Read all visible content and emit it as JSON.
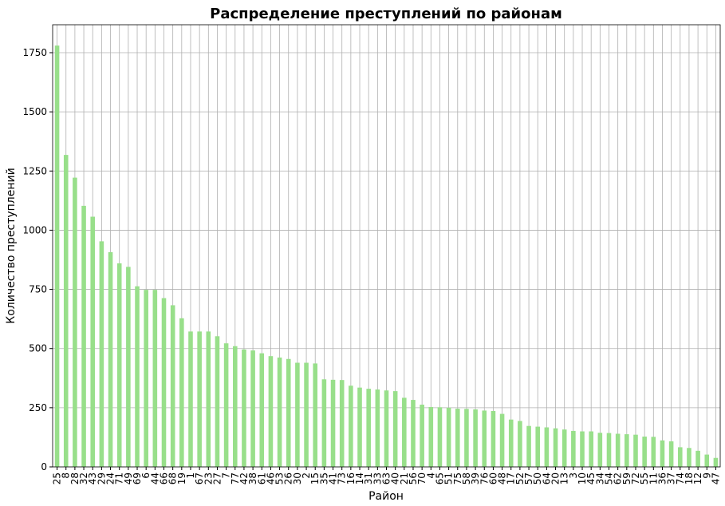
{
  "chart_data": {
    "type": "bar",
    "title": "Распределение преступлений по районам",
    "xlabel": "Район",
    "ylabel": "Количество преступлений",
    "categories": [
      "25",
      "8",
      "28",
      "32",
      "43",
      "29",
      "24",
      "71",
      "49",
      "69",
      "6",
      "44",
      "66",
      "68",
      "19",
      "1",
      "67",
      "23",
      "27",
      "7",
      "77",
      "42",
      "38",
      "61",
      "46",
      "53",
      "26",
      "30",
      "2",
      "15",
      "35",
      "41",
      "73",
      "16",
      "14",
      "31",
      "33",
      "63",
      "40",
      "21",
      "56",
      "70",
      "4",
      "65",
      "51",
      "75",
      "58",
      "39",
      "76",
      "60",
      "48",
      "17",
      "52",
      "57",
      "50",
      "64",
      "20",
      "13",
      "3",
      "10",
      "45",
      "34",
      "54",
      "62",
      "59",
      "72",
      "55",
      "11",
      "36",
      "37",
      "74",
      "18",
      "12",
      "9",
      "47"
    ],
    "values": [
      1780,
      1318,
      1222,
      1103,
      1057,
      953,
      907,
      860,
      845,
      763,
      748,
      748,
      713,
      683,
      628,
      572,
      572,
      572,
      552,
      522,
      510,
      496,
      492,
      480,
      468,
      462,
      456,
      440,
      440,
      437,
      370,
      368,
      367,
      343,
      335,
      330,
      327,
      323,
      320,
      292,
      283,
      263,
      253,
      252,
      250,
      246,
      245,
      243,
      238,
      236,
      224,
      200,
      194,
      173,
      170,
      167,
      163,
      158,
      152,
      150,
      150,
      144,
      143,
      140,
      138,
      136,
      128,
      127,
      112,
      108,
      83,
      80,
      68,
      52,
      38
    ],
    "color": "#98df8a",
    "ylim": [
      0,
      1868
    ],
    "yticks": [
      0,
      250,
      500,
      750,
      1000,
      1250,
      1500,
      1750
    ],
    "grid": true
  }
}
